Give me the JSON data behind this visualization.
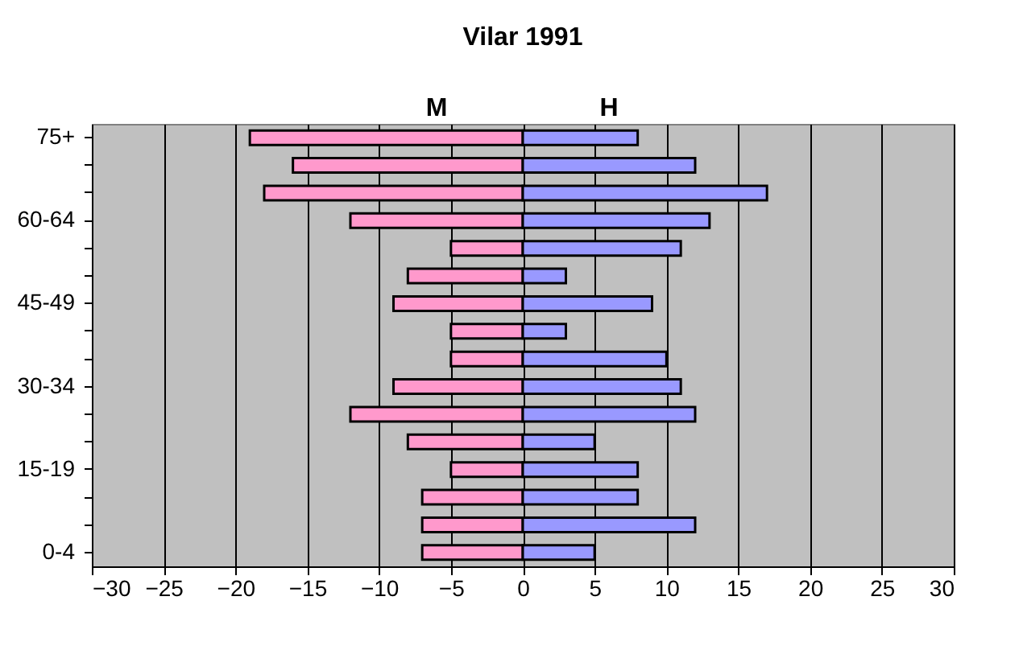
{
  "chart_data": {
    "type": "bar",
    "orientation": "horizontal",
    "stacked": true,
    "title": "Vilar 1991",
    "categories": [
      "75+",
      null,
      null,
      "60-64",
      null,
      null,
      "45-49",
      null,
      null,
      "30-34",
      null,
      null,
      "15-19",
      null,
      null,
      "0-4"
    ],
    "series": [
      {
        "name": "M",
        "color": "#ff99cc",
        "values": [
          -19,
          -16,
          -18,
          -12,
          -5,
          -8,
          -9,
          -5,
          -5,
          -9,
          -12,
          -8,
          -5,
          -7,
          -7,
          -7
        ]
      },
      {
        "name": "H",
        "color": "#9999ff",
        "values": [
          8,
          12,
          17,
          13,
          11,
          3,
          9,
          3,
          10,
          11,
          12,
          5,
          8,
          8,
          12,
          5
        ]
      }
    ],
    "xlim": [
      -30,
      30
    ],
    "xticks": [
      -30,
      -25,
      -20,
      -15,
      -10,
      -5,
      0,
      5,
      10,
      15,
      20,
      25,
      30
    ],
    "grid": "x"
  }
}
